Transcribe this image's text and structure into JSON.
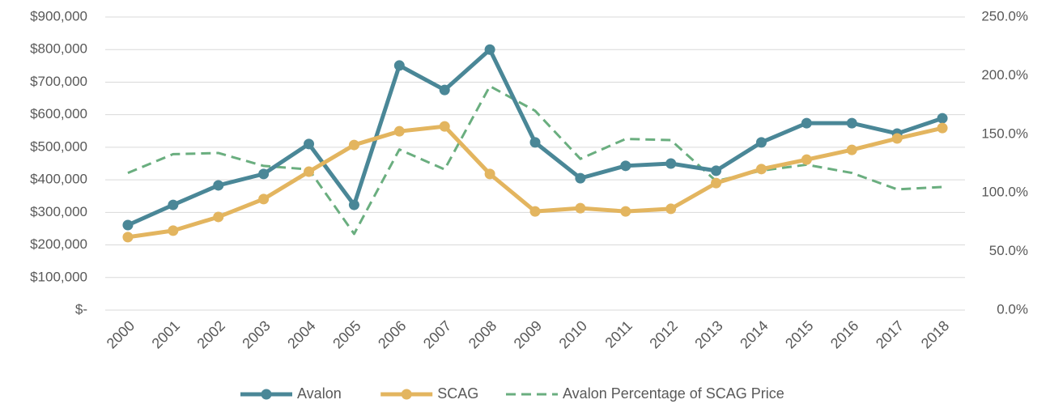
{
  "chart_data": {
    "type": "line",
    "categories": [
      "2000",
      "2001",
      "2002",
      "2003",
      "2004",
      "2005",
      "2006",
      "2007",
      "2008",
      "2009",
      "2010",
      "2011",
      "2012",
      "2013",
      "2014",
      "2015",
      "2016",
      "2017",
      "2018"
    ],
    "series": [
      {
        "name": "Avalon",
        "color": "#4a8797",
        "markers": true,
        "dashed": false,
        "values": [
          261000,
          323000,
          383000,
          418000,
          510000,
          323000,
          751000,
          676000,
          800000,
          515000,
          405000,
          443000,
          450000,
          428000,
          515000,
          574000,
          574000,
          542000,
          589000
        ]
      },
      {
        "name": "SCAG",
        "color": "#e3b55f",
        "markers": true,
        "dashed": false,
        "values": [
          224000,
          244000,
          286000,
          341000,
          425000,
          507000,
          549000,
          564000,
          418000,
          303000,
          313000,
          303000,
          311000,
          390000,
          433000,
          462000,
          492000,
          527000,
          559000
        ]
      },
      {
        "name": "Avalon Percentage of SCAG Price",
        "color": "#6aae7f",
        "markers": false,
        "dashed": true,
        "axis": "y2",
        "values": [
          117,
          133,
          134,
          123,
          120,
          65,
          137,
          120,
          191,
          170,
          129,
          146,
          145,
          110,
          119,
          124,
          117,
          103,
          105
        ]
      }
    ],
    "ylim": [
      0,
      900000
    ],
    "yticks": [
      {
        "value": 0,
        "label": "$-"
      },
      {
        "value": 100000,
        "label": "$100,000"
      },
      {
        "value": 200000,
        "label": "$200,000"
      },
      {
        "value": 300000,
        "label": "$300,000"
      },
      {
        "value": 400000,
        "label": "$400,000"
      },
      {
        "value": 500000,
        "label": "$500,000"
      },
      {
        "value": 600000,
        "label": "$600,000"
      },
      {
        "value": 700000,
        "label": "$700,000"
      },
      {
        "value": 800000,
        "label": "$800,000"
      },
      {
        "value": 900000,
        "label": "$900,000"
      }
    ],
    "y2lim": [
      0,
      250
    ],
    "y2ticks": [
      {
        "value": 0,
        "label": "0.0%"
      },
      {
        "value": 50,
        "label": "50.0%"
      },
      {
        "value": 100,
        "label": "100.0%"
      },
      {
        "value": 150,
        "label": "150.0%"
      },
      {
        "value": 200,
        "label": "200.0%"
      },
      {
        "value": 250,
        "label": "250.0%"
      }
    ],
    "grid": true,
    "legend": "bottom"
  }
}
